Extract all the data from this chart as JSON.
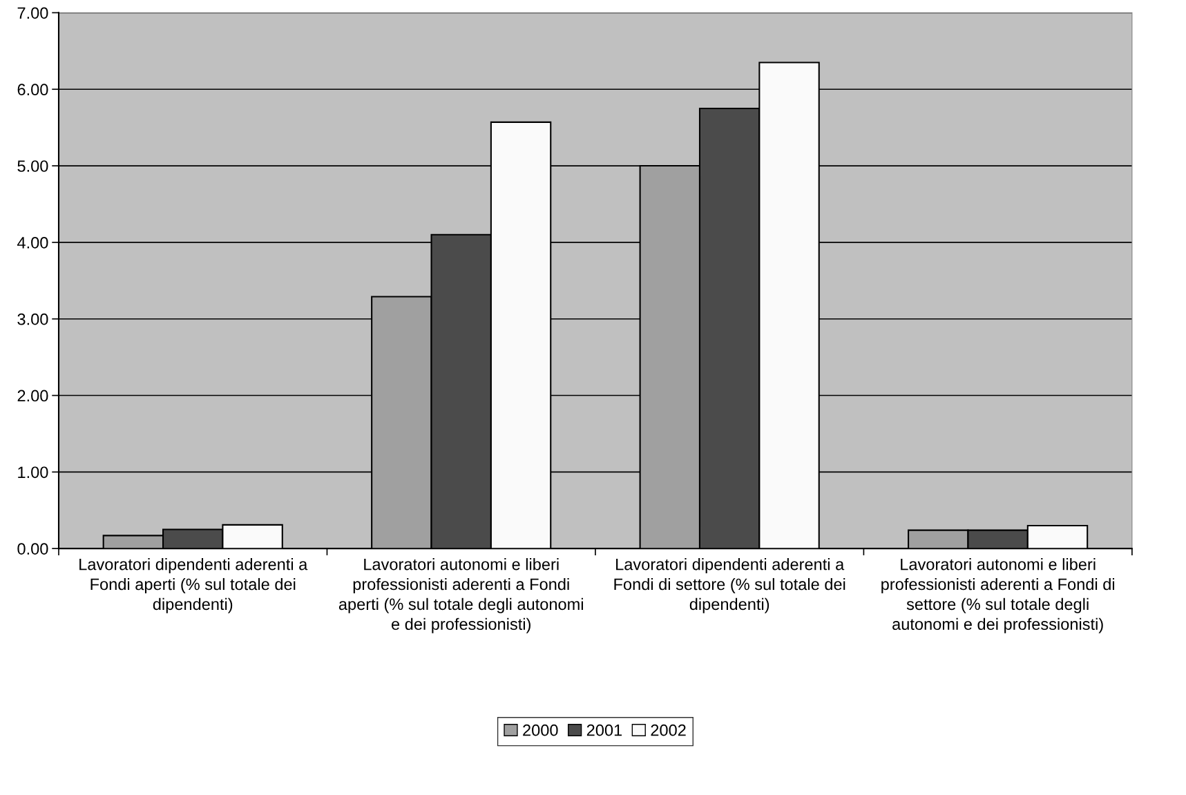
{
  "chart_data": {
    "type": "bar",
    "categories": [
      "Lavoratori dipendenti aderenti a Fondi aperti (% sul totale dei dipendenti)",
      "Lavoratori autonomi e liberi professionisti aderenti a Fondi aperti (% sul totale degli autonomi e dei professionisti)",
      "Lavoratori dipendenti aderenti a Fondi di settore (% sul totale dei dipendenti)",
      "Lavoratori autonomi e liberi professionisti aderenti a Fondi di settore (% sul totale degli autonomi e dei professionisti)"
    ],
    "series": [
      {
        "name": "2000",
        "color": "#a0a0a0",
        "values": [
          0.17,
          3.29,
          5.0,
          0.24
        ]
      },
      {
        "name": "2001",
        "color": "#4b4b4b",
        "values": [
          0.25,
          4.1,
          5.75,
          0.24
        ]
      },
      {
        "name": "2002",
        "color": "#fafafa",
        "values": [
          0.31,
          5.57,
          6.35,
          0.3
        ]
      }
    ],
    "ylim": [
      0,
      7
    ],
    "yticks": [
      {
        "value": 0,
        "label": "0.00"
      },
      {
        "value": 1,
        "label": "1.00"
      },
      {
        "value": 2,
        "label": "2.00"
      },
      {
        "value": 3,
        "label": "3.00"
      },
      {
        "value": 4,
        "label": "4.00"
      },
      {
        "value": 5,
        "label": "5.00"
      },
      {
        "value": 6,
        "label": "6.00"
      },
      {
        "value": 7,
        "label": "7.00"
      }
    ],
    "grid": "y",
    "legend": "bottom"
  }
}
